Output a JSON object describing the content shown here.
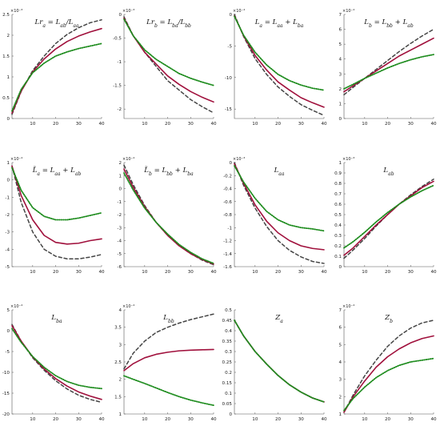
{
  "style": {
    "series_colors": [
      "#444444",
      "#a0103c",
      "#1e8c1e"
    ],
    "series_dash": [
      "4,3",
      "",
      "1,1.6"
    ],
    "series_width": [
      1.5,
      1.6,
      1.8
    ]
  },
  "chart_data": [
    {
      "type": "line",
      "title": "Lr_a = L_ab/L_aa",
      "exponent": "×10⁻³",
      "x": [
        1,
        40
      ],
      "xticks": [
        10,
        20,
        30,
        40
      ],
      "ylim": [
        0,
        2.5
      ],
      "yticks": [
        0,
        0.5,
        1,
        1.5,
        2,
        2.5
      ],
      "series": [
        {
          "x": [
            1,
            5,
            10,
            15,
            20,
            25,
            30,
            35,
            40
          ],
          "values": [
            0.1,
            0.65,
            1.15,
            1.5,
            1.8,
            2.02,
            2.18,
            2.3,
            2.37
          ]
        },
        {
          "x": [
            1,
            5,
            10,
            15,
            20,
            25,
            30,
            35,
            40
          ],
          "values": [
            0.13,
            0.66,
            1.12,
            1.43,
            1.67,
            1.85,
            1.98,
            2.08,
            2.16
          ]
        },
        {
          "x": [
            1,
            5,
            10,
            15,
            20,
            25,
            30,
            35,
            40
          ],
          "values": [
            0.18,
            0.7,
            1.1,
            1.33,
            1.5,
            1.6,
            1.68,
            1.74,
            1.8
          ]
        }
      ]
    },
    {
      "type": "line",
      "title": "Lr_b = L_ba/L_bb",
      "exponent": "×10⁻³",
      "x": [
        1,
        40
      ],
      "xticks": [
        10,
        20,
        30,
        40
      ],
      "ylim": [
        -2.2,
        0
      ],
      "yticks": [
        0,
        -0.5,
        -1,
        -1.5,
        -2
      ],
      "series": [
        {
          "x": [
            1,
            5,
            10,
            15,
            20,
            25,
            30,
            35,
            40
          ],
          "values": [
            -0.05,
            -0.45,
            -0.8,
            -1.1,
            -1.4,
            -1.6,
            -1.8,
            -1.95,
            -2.08
          ]
        },
        {
          "x": [
            1,
            5,
            10,
            15,
            20,
            25,
            30,
            35,
            40
          ],
          "values": [
            -0.08,
            -0.45,
            -0.8,
            -1.05,
            -1.3,
            -1.48,
            -1.63,
            -1.75,
            -1.85
          ]
        },
        {
          "x": [
            1,
            5,
            10,
            15,
            20,
            25,
            30,
            35,
            40
          ],
          "values": [
            -0.1,
            -0.45,
            -0.75,
            -0.95,
            -1.1,
            -1.25,
            -1.35,
            -1.43,
            -1.5
          ]
        }
      ]
    },
    {
      "type": "line",
      "title": "L_a = L_aa + L_ba",
      "exponent": "×10⁻⁴",
      "x": [
        1,
        40
      ],
      "xticks": [
        10,
        20,
        30,
        40
      ],
      "ylim": [
        -16.5,
        0
      ],
      "yticks": [
        0,
        -5,
        -10,
        -15
      ],
      "series": [
        {
          "x": [
            1,
            5,
            10,
            15,
            20,
            25,
            30,
            35,
            40
          ],
          "values": [
            0,
            -3.5,
            -7,
            -9.5,
            -11.5,
            -13,
            -14.3,
            -15.2,
            -16
          ]
        },
        {
          "x": [
            1,
            5,
            10,
            15,
            20,
            25,
            30,
            35,
            40
          ],
          "values": [
            -0.2,
            -3.4,
            -6.5,
            -8.8,
            -10.7,
            -12,
            -13.2,
            -14,
            -14.7
          ]
        },
        {
          "x": [
            1,
            5,
            10,
            15,
            20,
            25,
            30,
            35,
            40
          ],
          "values": [
            -0.3,
            -3.3,
            -6,
            -8,
            -9.5,
            -10.5,
            -11.2,
            -11.7,
            -12
          ]
        }
      ]
    },
    {
      "type": "line",
      "title": "L_b = L_bb + L_ab",
      "exponent": "×10⁻⁴",
      "x": [
        1,
        40
      ],
      "xticks": [
        10,
        20,
        30,
        40
      ],
      "ylim": [
        0,
        7
      ],
      "yticks": [
        0,
        1,
        2,
        3,
        4,
        5,
        6,
        7
      ],
      "series": [
        {
          "x": [
            1,
            5,
            10,
            15,
            20,
            25,
            30,
            35,
            40
          ],
          "values": [
            1.6,
            2.1,
            2.7,
            3.3,
            3.9,
            4.5,
            5.05,
            5.55,
            6
          ]
        },
        {
          "x": [
            1,
            5,
            10,
            15,
            20,
            25,
            30,
            35,
            40
          ],
          "values": [
            1.8,
            2.2,
            2.7,
            3.2,
            3.7,
            4.2,
            4.6,
            5,
            5.4
          ]
        },
        {
          "x": [
            1,
            5,
            10,
            15,
            20,
            25,
            30,
            35,
            40
          ],
          "values": [
            2,
            2.3,
            2.7,
            3.05,
            3.4,
            3.7,
            3.95,
            4.15,
            4.3
          ]
        }
      ]
    },
    {
      "type": "line",
      "title": "L̃_a = L_aa + L_ab",
      "exponent": "×10⁻⁴",
      "x": [
        1,
        40
      ],
      "xticks": [
        10,
        20,
        30,
        40
      ],
      "ylim": [
        -5,
        1
      ],
      "yticks": [
        1,
        0,
        -1,
        -2,
        -3,
        -4,
        -5
      ],
      "series": [
        {
          "x": [
            1,
            5,
            10,
            15,
            20,
            25,
            30,
            35,
            40
          ],
          "values": [
            0.8,
            -1.3,
            -3,
            -4,
            -4.4,
            -4.55,
            -4.55,
            -4.45,
            -4.3
          ]
        },
        {
          "x": [
            1,
            5,
            10,
            15,
            20,
            25,
            30,
            35,
            40
          ],
          "values": [
            0.8,
            -0.9,
            -2.3,
            -3.2,
            -3.6,
            -3.7,
            -3.65,
            -3.5,
            -3.4
          ]
        },
        {
          "x": [
            1,
            5,
            10,
            15,
            20,
            25,
            30,
            35,
            40
          ],
          "values": [
            0.7,
            -0.6,
            -1.6,
            -2.1,
            -2.3,
            -2.3,
            -2.2,
            -2.05,
            -1.9
          ]
        }
      ]
    },
    {
      "type": "line",
      "title": "L̃_b = L_bb + L_ba",
      "exponent": "×10⁻⁴",
      "x": [
        1,
        40
      ],
      "xticks": [
        10,
        20,
        30,
        40
      ],
      "ylim": [
        -6,
        2
      ],
      "yticks": [
        2,
        1,
        0,
        -1,
        -2,
        -3,
        -4,
        -5,
        -6
      ],
      "series": [
        {
          "x": [
            1,
            5,
            10,
            15,
            20,
            25,
            30,
            35,
            40
          ],
          "values": [
            1.8,
            0.3,
            -1.3,
            -2.6,
            -3.6,
            -4.4,
            -5,
            -5.5,
            -5.85
          ]
        },
        {
          "x": [
            1,
            5,
            10,
            15,
            20,
            25,
            30,
            35,
            40
          ],
          "values": [
            1.5,
            0.1,
            -1.4,
            -2.6,
            -3.6,
            -4.4,
            -5,
            -5.45,
            -5.8
          ]
        },
        {
          "x": [
            1,
            5,
            10,
            15,
            20,
            25,
            30,
            35,
            40
          ],
          "values": [
            1.2,
            -0.1,
            -1.5,
            -2.6,
            -3.5,
            -4.3,
            -4.9,
            -5.4,
            -5.75
          ]
        }
      ]
    },
    {
      "type": "line",
      "title": "L_aa",
      "exponent": "×10⁻³",
      "x": [
        1,
        40
      ],
      "xticks": [
        10,
        20,
        30,
        40
      ],
      "ylim": [
        -1.6,
        0
      ],
      "yticks": [
        0,
        -0.2,
        -0.4,
        -0.6,
        -0.8,
        -1,
        -1.2,
        -1.4,
        -1.6
      ],
      "series": [
        {
          "x": [
            1,
            5,
            10,
            15,
            20,
            25,
            30,
            35,
            40
          ],
          "values": [
            0,
            -0.35,
            -0.7,
            -0.98,
            -1.2,
            -1.35,
            -1.45,
            -1.52,
            -1.55
          ]
        },
        {
          "x": [
            1,
            5,
            10,
            15,
            20,
            25,
            30,
            35,
            40
          ],
          "values": [
            -0.02,
            -0.32,
            -0.65,
            -0.9,
            -1.08,
            -1.2,
            -1.28,
            -1.32,
            -1.34
          ]
        },
        {
          "x": [
            1,
            5,
            10,
            15,
            20,
            25,
            30,
            35,
            40
          ],
          "values": [
            -0.05,
            -0.3,
            -0.55,
            -0.75,
            -0.88,
            -0.96,
            -1.0,
            -1.02,
            -1.05
          ]
        }
      ]
    },
    {
      "type": "line",
      "title": "L_ab",
      "exponent": "×10⁻³",
      "x": [
        1,
        40
      ],
      "xticks": [
        10,
        20,
        30,
        40
      ],
      "ylim": [
        0,
        1
      ],
      "yticks": [
        0,
        0.1,
        0.2,
        0.3,
        0.4,
        0.5,
        0.6,
        0.7,
        0.8,
        0.9,
        1
      ],
      "series": [
        {
          "x": [
            1,
            5,
            10,
            15,
            20,
            25,
            30,
            35,
            40
          ],
          "values": [
            0.08,
            0.16,
            0.27,
            0.39,
            0.5,
            0.6,
            0.69,
            0.77,
            0.84
          ]
        },
        {
          "x": [
            1,
            5,
            10,
            15,
            20,
            25,
            30,
            35,
            40
          ],
          "values": [
            0.11,
            0.18,
            0.29,
            0.4,
            0.5,
            0.6,
            0.68,
            0.76,
            0.82
          ]
        },
        {
          "x": [
            1,
            5,
            10,
            15,
            20,
            25,
            30,
            35,
            40
          ],
          "values": [
            0.18,
            0.24,
            0.33,
            0.43,
            0.52,
            0.6,
            0.67,
            0.73,
            0.78
          ]
        }
      ]
    },
    {
      "type": "line",
      "title": "L_ba",
      "exponent": "×10⁻⁴",
      "x": [
        1,
        40
      ],
      "xticks": [
        10,
        20,
        30,
        40
      ],
      "ylim": [
        -20,
        5
      ],
      "yticks": [
        5,
        0,
        -5,
        -10,
        -15,
        -20
      ],
      "series": [
        {
          "x": [
            1,
            5,
            10,
            15,
            20,
            25,
            30,
            35,
            40
          ],
          "values": [
            1.5,
            -2.5,
            -6.5,
            -9.5,
            -12,
            -14,
            -15.5,
            -16.5,
            -17.2
          ]
        },
        {
          "x": [
            1,
            5,
            10,
            15,
            20,
            25,
            30,
            35,
            40
          ],
          "values": [
            1.2,
            -2.5,
            -6.3,
            -9.2,
            -11.5,
            -13.3,
            -14.7,
            -15.7,
            -16.5
          ]
        },
        {
          "x": [
            1,
            5,
            10,
            15,
            20,
            25,
            30,
            35,
            40
          ],
          "values": [
            0.5,
            -2.8,
            -6.2,
            -8.8,
            -10.8,
            -12.2,
            -13.1,
            -13.6,
            -13.9
          ]
        }
      ]
    },
    {
      "type": "line",
      "title": "L_bb",
      "exponent": "×10⁻⁴",
      "x": [
        1,
        40
      ],
      "xticks": [
        10,
        20,
        30,
        40
      ],
      "ylim": [
        1,
        4
      ],
      "yticks": [
        1,
        1.5,
        2,
        2.5,
        3,
        3.5,
        4
      ],
      "series": [
        {
          "x": [
            1,
            5,
            10,
            15,
            20,
            25,
            30,
            35,
            40
          ],
          "values": [
            2.3,
            2.75,
            3.1,
            3.35,
            3.5,
            3.62,
            3.72,
            3.8,
            3.88
          ]
        },
        {
          "x": [
            1,
            5,
            10,
            15,
            20,
            25,
            30,
            35,
            40
          ],
          "values": [
            2.25,
            2.45,
            2.62,
            2.72,
            2.78,
            2.82,
            2.84,
            2.85,
            2.86
          ]
        },
        {
          "x": [
            1,
            5,
            10,
            15,
            20,
            25,
            30,
            35,
            40
          ],
          "values": [
            2.1,
            2.0,
            1.88,
            1.75,
            1.62,
            1.5,
            1.4,
            1.32,
            1.25
          ]
        }
      ]
    },
    {
      "type": "line",
      "title": "Z_a",
      "exponent": "",
      "x": [
        1,
        40
      ],
      "xticks": [
        10,
        20,
        30,
        40
      ],
      "ylim": [
        0,
        0.5
      ],
      "yticks": [
        0,
        0.05,
        0.1,
        0.15,
        0.2,
        0.25,
        0.3,
        0.35,
        0.4,
        0.45,
        0.5
      ],
      "series": [
        {
          "x": [
            1,
            5,
            10,
            15,
            20,
            25,
            30,
            35,
            40
          ],
          "values": [
            0.45,
            0.375,
            0.3,
            0.24,
            0.185,
            0.14,
            0.105,
            0.077,
            0.058
          ]
        },
        {
          "x": [
            1,
            5,
            10,
            15,
            20,
            25,
            30,
            35,
            40
          ],
          "values": [
            0.45,
            0.375,
            0.3,
            0.24,
            0.185,
            0.14,
            0.105,
            0.077,
            0.058
          ]
        },
        {
          "x": [
            1,
            5,
            10,
            15,
            20,
            25,
            30,
            35,
            40
          ],
          "values": [
            0.45,
            0.375,
            0.3,
            0.24,
            0.185,
            0.14,
            0.105,
            0.077,
            0.058
          ]
        }
      ]
    },
    {
      "type": "line",
      "title": "Z_b",
      "exponent": "×10⁻⁴",
      "x": [
        1,
        40
      ],
      "xticks": [
        10,
        20,
        30,
        40
      ],
      "ylim": [
        1,
        7
      ],
      "yticks": [
        1,
        2,
        3,
        4,
        5,
        6,
        7
      ],
      "series": [
        {
          "x": [
            1,
            5,
            10,
            15,
            20,
            25,
            30,
            35,
            40
          ],
          "values": [
            1.1,
            2.1,
            3.2,
            4.1,
            4.9,
            5.5,
            5.95,
            6.25,
            6.4
          ]
        },
        {
          "x": [
            1,
            5,
            10,
            15,
            20,
            25,
            30,
            35,
            40
          ],
          "values": [
            1.1,
            2,
            2.9,
            3.7,
            4.3,
            4.75,
            5.1,
            5.35,
            5.5
          ]
        },
        {
          "x": [
            1,
            5,
            10,
            15,
            20,
            25,
            30,
            35,
            40
          ],
          "values": [
            1.2,
            1.9,
            2.55,
            3.1,
            3.5,
            3.8,
            4.0,
            4.1,
            4.2
          ]
        }
      ]
    }
  ]
}
